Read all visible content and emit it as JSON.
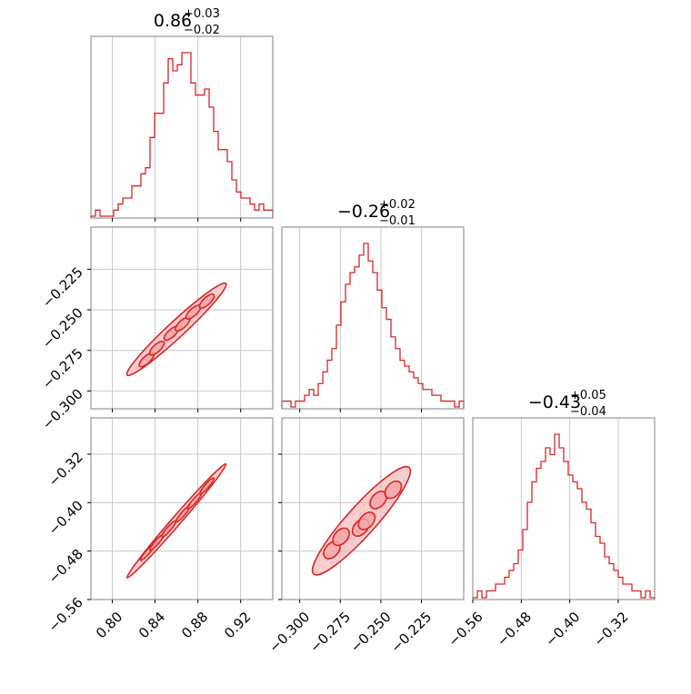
{
  "chart_data": {
    "type": "corner",
    "colors": {
      "accent": "#d62728",
      "fill": "#f4a6a8",
      "frame": "#808080",
      "grid": "#c8c8c8"
    },
    "parameters": [
      {
        "title_median": "0.86",
        "title_plus": "+0.03",
        "title_minus": "−0.02",
        "range": [
          0.78,
          0.95
        ],
        "ticks": [
          0.8,
          0.84,
          0.88,
          0.92
        ],
        "tick_labels": [
          "0.80",
          "0.84",
          "0.88",
          "0.92"
        ]
      },
      {
        "title_median": "−0.26",
        "title_plus": "+0.02",
        "title_minus": "−0.01",
        "range": [
          -0.311,
          -0.199
        ],
        "ticks": [
          -0.3,
          -0.275,
          -0.25,
          -0.225
        ],
        "tick_labels": [
          "−0.300",
          "−0.275",
          "−0.250",
          "−0.225"
        ]
      },
      {
        "title_median": "−0.43",
        "title_plus": "+0.05",
        "title_minus": "−0.04",
        "range": [
          -0.56,
          -0.26
        ],
        "ticks": [
          -0.56,
          -0.48,
          -0.4,
          -0.32
        ],
        "tick_labels": [
          "−0.56",
          "−0.48",
          "−0.40",
          "−0.32"
        ]
      }
    ],
    "histograms": [
      [
        0,
        1,
        0,
        0,
        0,
        1,
        2,
        3,
        3,
        5,
        5,
        7,
        8,
        13,
        17,
        17,
        22,
        26,
        24,
        25,
        27,
        27,
        22,
        20,
        20,
        21,
        18,
        14,
        11,
        11,
        9,
        6,
        4,
        3,
        3,
        2,
        1,
        2,
        1,
        1
      ],
      [
        1,
        1,
        0,
        1,
        1,
        2,
        3,
        2,
        4,
        6,
        8,
        10,
        14,
        18,
        21,
        23,
        24,
        26,
        28,
        25,
        23,
        20,
        17,
        15,
        12,
        10,
        8,
        7,
        6,
        5,
        4,
        3,
        3,
        2,
        2,
        1,
        1,
        1,
        0,
        1
      ],
      [
        0,
        1,
        0,
        1,
        1,
        2,
        2,
        3,
        4,
        5,
        7,
        10,
        14,
        17,
        19,
        20,
        22,
        21,
        24,
        22,
        20,
        18,
        17,
        16,
        14,
        13,
        11,
        9,
        8,
        6,
        5,
        4,
        3,
        2,
        2,
        1,
        1,
        0,
        1,
        0
      ]
    ]
  }
}
